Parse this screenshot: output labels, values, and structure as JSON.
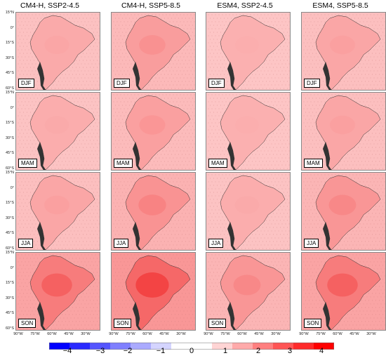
{
  "columns": [
    {
      "title": "CM4-H, SSP2-4.5"
    },
    {
      "title": "CM4-H, SSP5-8.5"
    },
    {
      "title": "ESM4, SSP2-4.5"
    },
    {
      "title": "ESM4, SSP5-8.5"
    }
  ],
  "seasons": [
    "DJF",
    "MAM",
    "JJA",
    "SON"
  ],
  "lat_ticks": [
    "15°N",
    "0°",
    "15°S",
    "30°S",
    "45°S",
    "60°S"
  ],
  "lon_ticks": [
    "90°W",
    "75°W",
    "60°W",
    "45°W",
    "30°W"
  ],
  "colorbar": {
    "ticks": [
      "−4",
      "−3",
      "−2",
      "−1",
      "0",
      "1",
      "2",
      "3",
      "4"
    ],
    "colors": [
      "#0000ff",
      "#2a2aff",
      "#5555ff",
      "#7f7fff",
      "#aaaaff",
      "#d4d4ff",
      "#ffffff",
      "#ffffff",
      "#ffd4d4",
      "#ffaaaa",
      "#ff7f7f",
      "#ff5555",
      "#ff2a2a",
      "#ff0000"
    ]
  },
  "intensity": [
    [
      1.2,
      1.6,
      1.0,
      1.3
    ],
    [
      1.1,
      1.5,
      1.0,
      1.3
    ],
    [
      1.3,
      1.9,
      1.1,
      1.8
    ],
    [
      2.6,
      3.2,
      1.8,
      2.6
    ]
  ]
}
